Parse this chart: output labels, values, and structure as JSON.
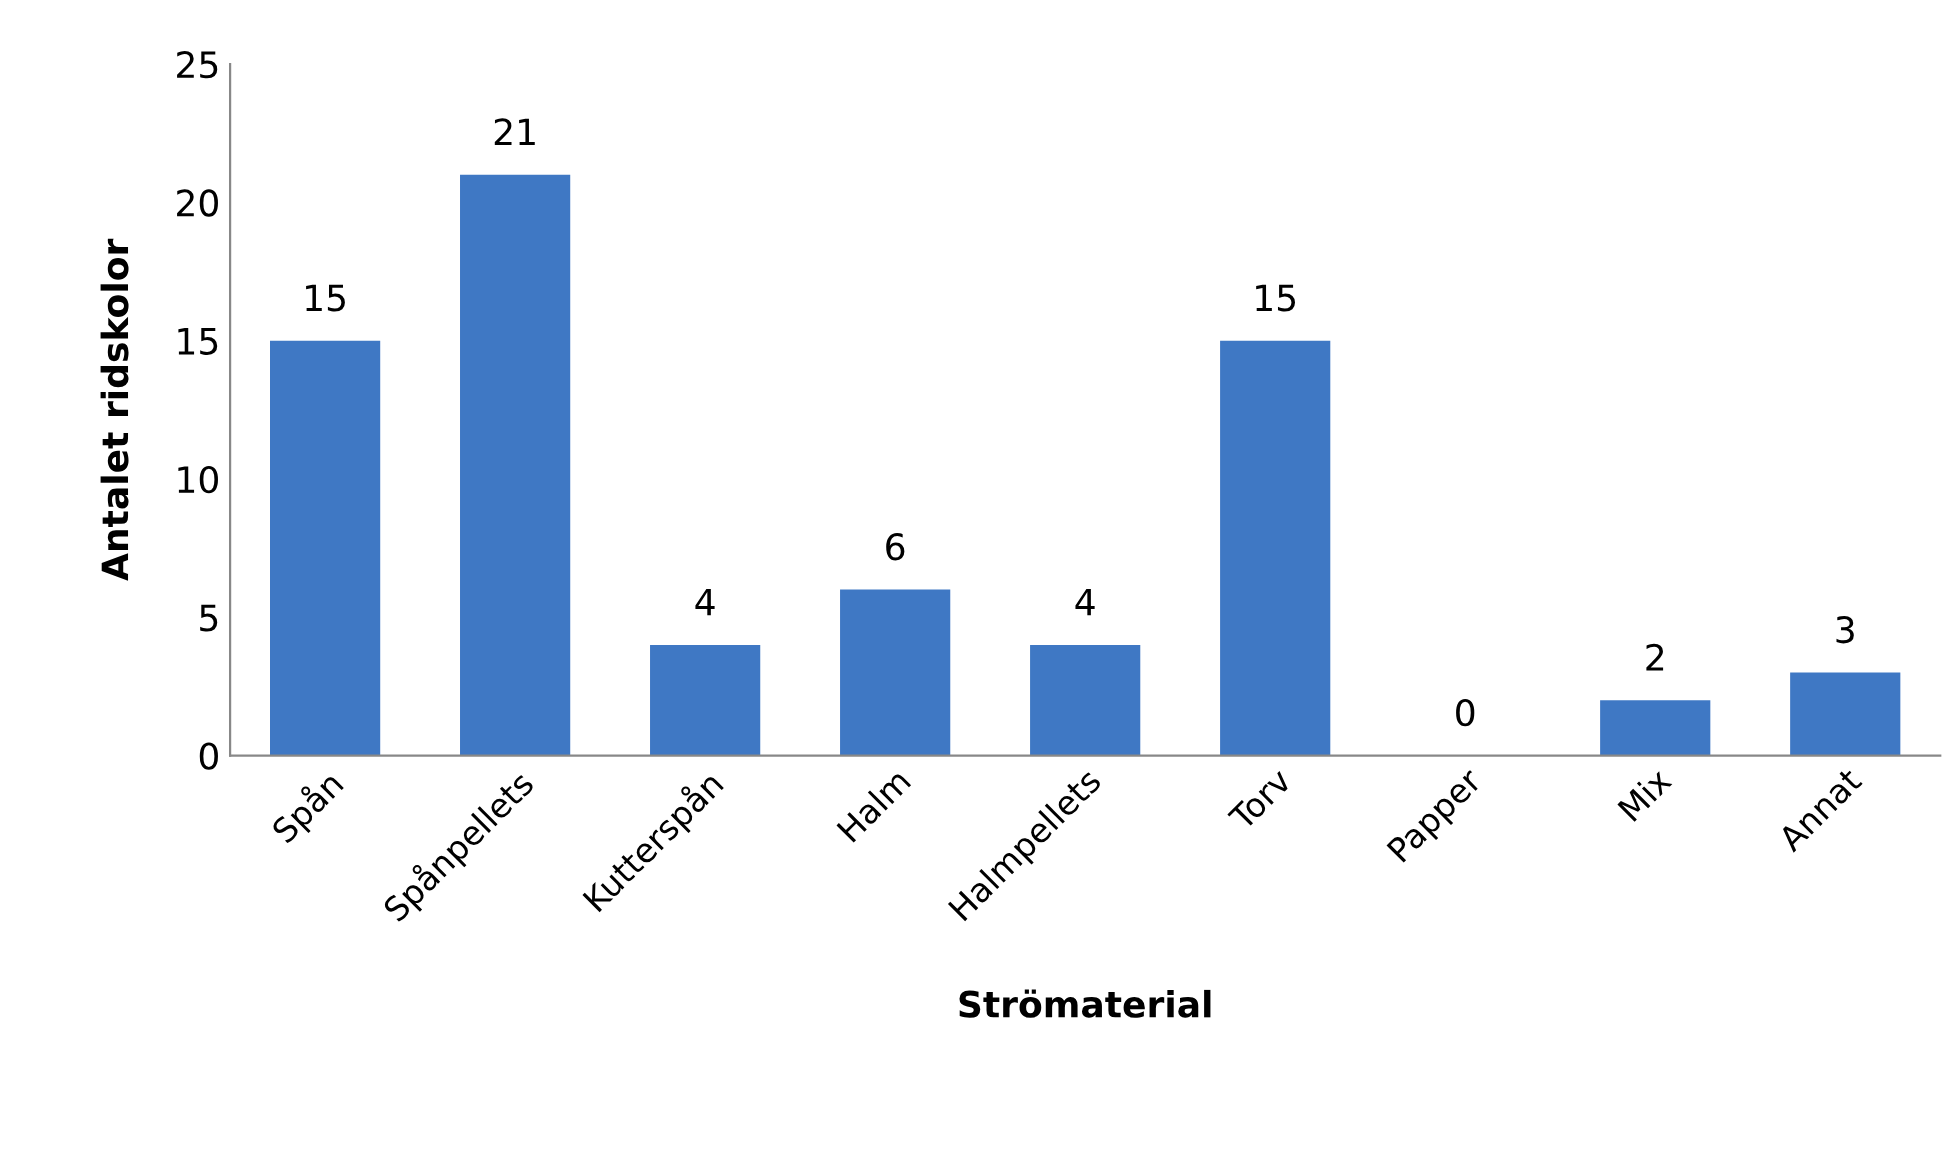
{
  "chart_data": {
    "type": "bar",
    "xlabel": "Strömaterial",
    "ylabel": "Antalet ridskolor",
    "categories": [
      "Spån",
      "Spånpellets",
      "Kutterspån",
      "Halm",
      "Halmpellets",
      "Torv",
      "Papper",
      "Mix",
      "Annat"
    ],
    "values": [
      15,
      21,
      4,
      6,
      4,
      15,
      0,
      2,
      3
    ],
    "color": "#3f78c4",
    "ylim": [
      0,
      25
    ],
    "yticks": [
      0,
      5,
      10,
      15,
      20,
      25
    ],
    "grid": false,
    "data_labels": true
  }
}
